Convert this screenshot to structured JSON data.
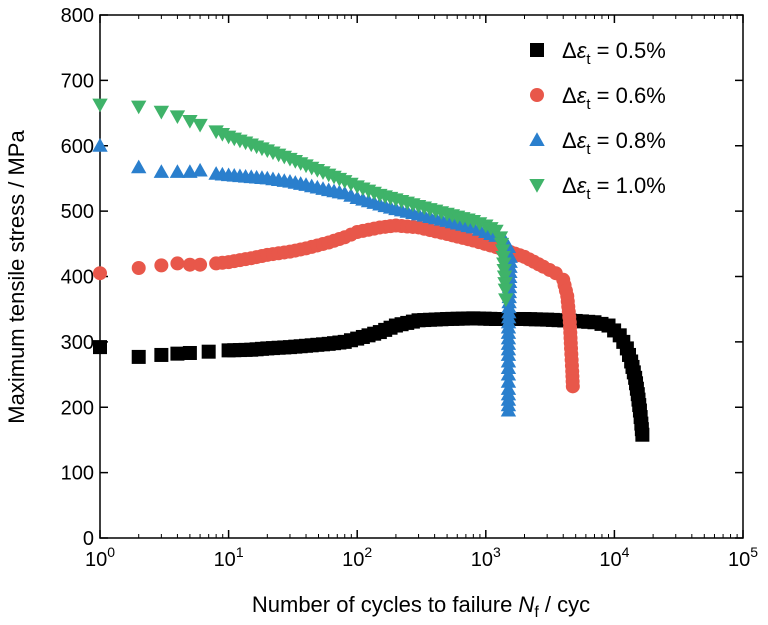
{
  "chart_data": {
    "type": "scatter",
    "xlabel": {
      "main": "Number of cycles to failure ",
      "var": "N",
      "sub": "f",
      "unit": " / cyc"
    },
    "ylabel": "Maximum tensile stress / MPa",
    "xscale": "log",
    "xlim": [
      1,
      100000
    ],
    "ylim": [
      0,
      800
    ],
    "grid": false,
    "legend_position": "top-right",
    "x_ticks": [
      {
        "base": "10",
        "exp": "0",
        "value": 1
      },
      {
        "base": "10",
        "exp": "1",
        "value": 10
      },
      {
        "base": "10",
        "exp": "2",
        "value": 100
      },
      {
        "base": "10",
        "exp": "3",
        "value": 1000
      },
      {
        "base": "10",
        "exp": "4",
        "value": 10000
      },
      {
        "base": "10",
        "exp": "5",
        "value": 100000
      }
    ],
    "y_ticks": [
      0,
      100,
      200,
      300,
      400,
      500,
      600,
      700,
      800
    ],
    "series": [
      {
        "name": {
          "delta": "Δ",
          "eps": "ε",
          "sub": "t",
          "value": " = 0.5%"
        },
        "marker": "square",
        "color": "#000000",
        "points": [
          [
            1,
            292
          ],
          [
            2,
            277
          ],
          [
            3,
            280
          ],
          [
            4,
            282
          ],
          [
            5,
            283
          ],
          [
            7,
            285
          ],
          [
            10,
            287
          ],
          [
            15,
            288
          ],
          [
            20,
            290
          ],
          [
            30,
            292
          ],
          [
            40,
            294
          ],
          [
            60,
            297
          ],
          [
            80,
            300
          ],
          [
            100,
            305
          ],
          [
            150,
            315
          ],
          [
            200,
            325
          ],
          [
            300,
            333
          ],
          [
            500,
            335
          ],
          [
            800,
            336
          ],
          [
            1200,
            335
          ],
          [
            2000,
            335
          ],
          [
            3000,
            334
          ],
          [
            5000,
            332
          ],
          [
            7000,
            330
          ],
          [
            9000,
            325
          ],
          [
            11000,
            310
          ],
          [
            12500,
            290
          ],
          [
            13500,
            270
          ],
          [
            14500,
            245
          ],
          [
            15200,
            220
          ],
          [
            15800,
            195
          ],
          [
            16200,
            175
          ],
          [
            16500,
            158
          ]
        ]
      },
      {
        "name": {
          "delta": "Δ",
          "eps": "ε",
          "sub": "t",
          "value": " = 0.6%"
        },
        "marker": "circle",
        "color": "#e8574a",
        "points": [
          [
            1,
            405
          ],
          [
            2,
            413
          ],
          [
            3,
            417
          ],
          [
            4,
            420
          ],
          [
            5,
            418
          ],
          [
            6,
            418
          ],
          [
            8,
            420
          ],
          [
            10,
            422
          ],
          [
            15,
            428
          ],
          [
            20,
            433
          ],
          [
            30,
            438
          ],
          [
            40,
            443
          ],
          [
            60,
            452
          ],
          [
            80,
            460
          ],
          [
            100,
            468
          ],
          [
            150,
            475
          ],
          [
            200,
            478
          ],
          [
            300,
            475
          ],
          [
            500,
            465
          ],
          [
            800,
            455
          ],
          [
            1200,
            445
          ],
          [
            2000,
            430
          ],
          [
            2800,
            415
          ],
          [
            3500,
            405
          ],
          [
            4000,
            395
          ],
          [
            4300,
            370
          ],
          [
            4500,
            330
          ],
          [
            4600,
            290
          ],
          [
            4700,
            255
          ],
          [
            4750,
            232
          ]
        ]
      },
      {
        "name": {
          "delta": "Δ",
          "eps": "ε",
          "sub": "t",
          "value": " = 0.8%"
        },
        "marker": "triangle-up",
        "color": "#2a7fcd",
        "points": [
          [
            1,
            600
          ],
          [
            2,
            567
          ],
          [
            3,
            560
          ],
          [
            4,
            560
          ],
          [
            5,
            560
          ],
          [
            6,
            562
          ],
          [
            8,
            557
          ],
          [
            10,
            555
          ],
          [
            15,
            552
          ],
          [
            20,
            550
          ],
          [
            30,
            545
          ],
          [
            40,
            540
          ],
          [
            60,
            532
          ],
          [
            80,
            527
          ],
          [
            100,
            520
          ],
          [
            150,
            510
          ],
          [
            200,
            503
          ],
          [
            300,
            495
          ],
          [
            500,
            485
          ],
          [
            800,
            475
          ],
          [
            1000,
            468
          ],
          [
            1200,
            462
          ],
          [
            1400,
            455
          ],
          [
            1500,
            445
          ],
          [
            1550,
            430
          ],
          [
            1500,
            322
          ],
          [
            1500,
            280
          ],
          [
            1500,
            250
          ],
          [
            1500,
            228
          ],
          [
            1500,
            203
          ],
          [
            1500,
            195
          ]
        ]
      },
      {
        "name": {
          "delta": "Δ",
          "eps": "ε",
          "sub": "t",
          "value": " = 1.0%"
        },
        "marker": "triangle-down",
        "color": "#3fb369",
        "points": [
          [
            1,
            663
          ],
          [
            2,
            660
          ],
          [
            3,
            652
          ],
          [
            4,
            645
          ],
          [
            5,
            638
          ],
          [
            6,
            632
          ],
          [
            8,
            622
          ],
          [
            10,
            614
          ],
          [
            15,
            602
          ],
          [
            20,
            593
          ],
          [
            30,
            580
          ],
          [
            40,
            570
          ],
          [
            60,
            556
          ],
          [
            80,
            546
          ],
          [
            100,
            538
          ],
          [
            150,
            525
          ],
          [
            200,
            518
          ],
          [
            300,
            508
          ],
          [
            500,
            496
          ],
          [
            800,
            485
          ],
          [
            1000,
            478
          ],
          [
            1200,
            470
          ],
          [
            1300,
            460
          ],
          [
            1350,
            440
          ],
          [
            1380,
            420
          ],
          [
            1400,
            400
          ],
          [
            1420,
            380
          ],
          [
            1430,
            365
          ]
        ]
      }
    ]
  }
}
